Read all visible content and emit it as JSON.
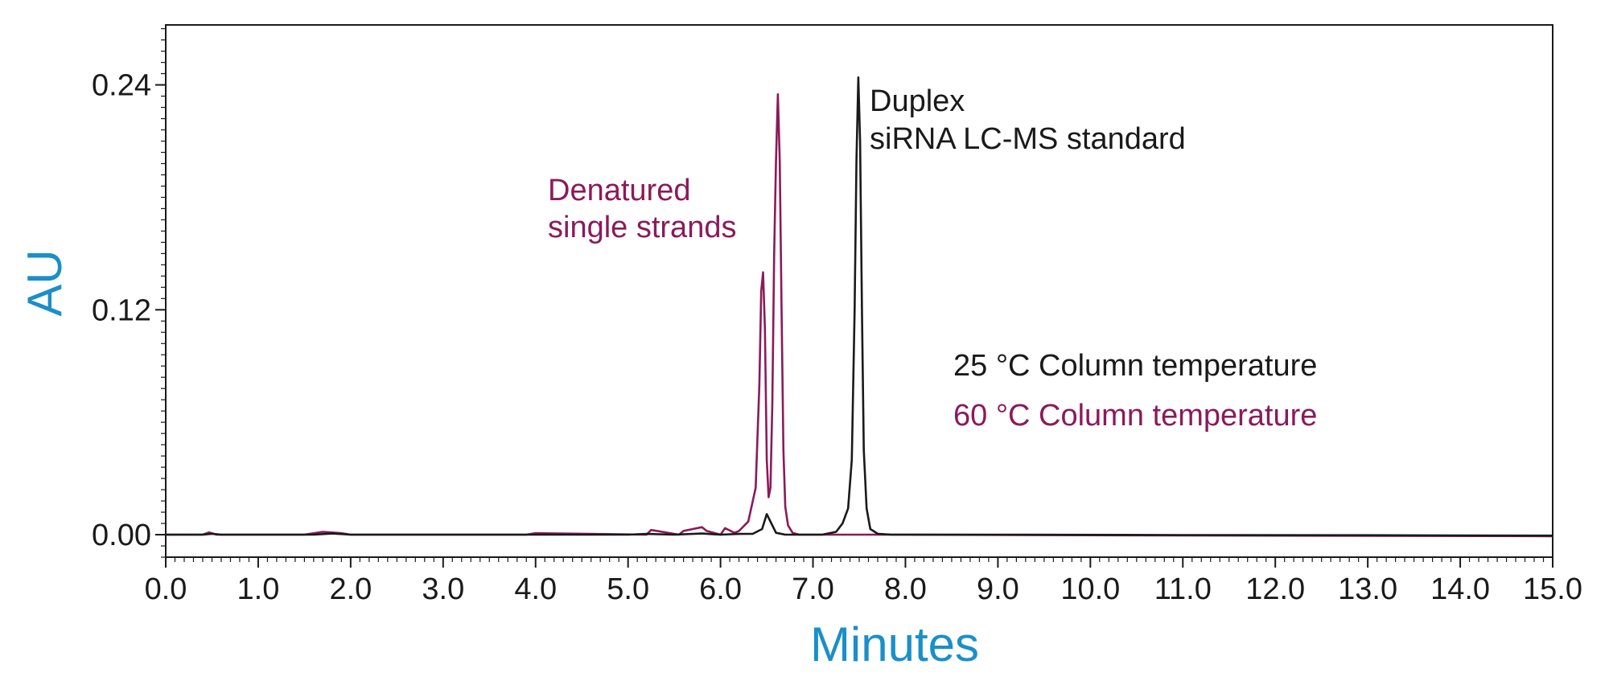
{
  "chart_data": {
    "type": "line",
    "xlabel": "Minutes",
    "ylabel": "AU",
    "xlim": [
      0.0,
      15.0
    ],
    "ylim": [
      -0.012,
      0.272
    ],
    "x_ticks": [
      "0.0",
      "1.0",
      "2.0",
      "3.0",
      "4.0",
      "5.0",
      "6.0",
      "7.0",
      "8.0",
      "9.0",
      "10.0",
      "11.0",
      "12.0",
      "13.0",
      "14.0",
      "15.0"
    ],
    "x_tick_values": [
      0,
      1,
      2,
      3,
      4,
      5,
      6,
      7,
      8,
      9,
      10,
      11,
      12,
      13,
      14,
      15
    ],
    "y_ticks": [
      "0.00",
      "0.12",
      "0.24"
    ],
    "y_tick_values": [
      0.0,
      0.12,
      0.24
    ],
    "grid": false,
    "colors": {
      "axis_title": "#1a8fc9",
      "frame": "#1a1a1a",
      "series_25": "#1a1a1a",
      "series_60": "#8b1a5a"
    },
    "series": [
      {
        "key": "25C",
        "color": "#1a1a1a",
        "x": [
          0,
          0.4,
          0.5,
          0.6,
          1.6,
          1.8,
          2.0,
          4.0,
          5.0,
          5.2,
          5.5,
          5.8,
          6.0,
          6.2,
          6.35,
          6.45,
          6.5,
          6.55,
          6.6,
          6.7,
          6.9,
          7.1,
          7.25,
          7.32,
          7.38,
          7.42,
          7.45,
          7.47,
          7.49,
          7.51,
          7.53,
          7.55,
          7.58,
          7.62,
          7.7,
          7.85,
          8.2,
          9.0,
          11.0,
          13.0,
          15.0
        ],
        "y": [
          0,
          0,
          0.0005,
          0,
          0,
          0.0006,
          0,
          0,
          0,
          0.0004,
          0,
          0.0006,
          0,
          0.0004,
          0.0005,
          0.003,
          0.011,
          0.006,
          0.001,
          0,
          0,
          0,
          0.0015,
          0.006,
          0.014,
          0.04,
          0.12,
          0.2,
          0.244,
          0.21,
          0.12,
          0.045,
          0.014,
          0.003,
          0.0005,
          0,
          0,
          0,
          -0.0002,
          -0.0003,
          -0.0005
        ]
      },
      {
        "key": "60C",
        "color": "#8b1a5a",
        "x": [
          0,
          0.4,
          0.47,
          0.55,
          1.5,
          1.7,
          1.9,
          2.0,
          3.9,
          4.0,
          5.2,
          5.25,
          5.55,
          5.6,
          5.8,
          5.85,
          6.0,
          6.05,
          6.15,
          6.2,
          6.3,
          6.38,
          6.42,
          6.44,
          6.46,
          6.48,
          6.5,
          6.52,
          6.54,
          6.56,
          6.58,
          6.6,
          6.62,
          6.64,
          6.66,
          6.68,
          6.7,
          6.73,
          6.78,
          6.85,
          7.0,
          8.0,
          10.0,
          12.0,
          15.0
        ],
        "y": [
          0,
          0,
          0.0012,
          0,
          0,
          0.0015,
          0.0008,
          0,
          0,
          0.0008,
          0,
          0.0025,
          0,
          0.002,
          0.004,
          0.002,
          0,
          0.0035,
          0.001,
          0.002,
          0.007,
          0.025,
          0.08,
          0.13,
          0.14,
          0.11,
          0.04,
          0.02,
          0.025,
          0.07,
          0.15,
          0.2,
          0.235,
          0.2,
          0.12,
          0.045,
          0.015,
          0.005,
          0.001,
          0,
          0,
          0,
          -0.0003,
          -0.0005,
          -0.0008
        ]
      }
    ],
    "annotations": {
      "duplex_line1": "Duplex",
      "duplex_line2": "siRNA LC-MS standard",
      "denatured_line1": "Denatured",
      "denatured_line2": "single strands",
      "legend_25": "25 °C Column temperature",
      "legend_60": "60 °C Column temperature"
    }
  }
}
